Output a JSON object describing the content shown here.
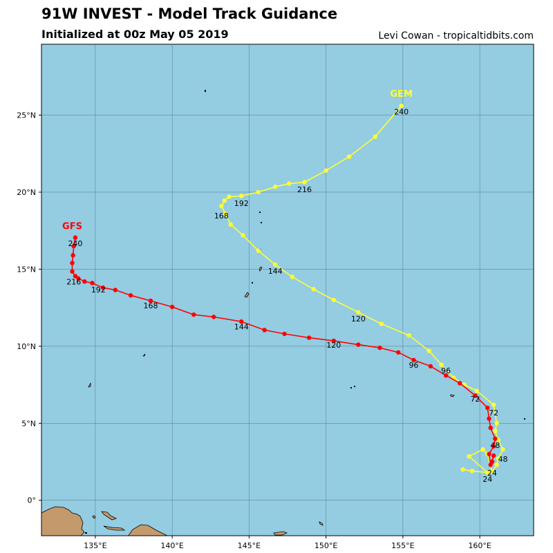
{
  "header": {
    "title": "91W INVEST - Model Track Guidance",
    "subtitle": "Initialized at 00z May 05 2019",
    "credit": "Levi Cowan - tropicaltidbits.com"
  },
  "colors": {
    "ocean": "#94cce2",
    "land": "#c49a6c",
    "gfs": "#ff0000",
    "gem": "#ffff33"
  },
  "axes": {
    "lon_ticks": [
      "135°E",
      "140°E",
      "145°E",
      "150°E",
      "155°E",
      "160°E"
    ],
    "lat_ticks": [
      "0°",
      "5°N",
      "10°N",
      "15°N",
      "20°N",
      "25°N"
    ]
  },
  "chart_data": {
    "type": "line",
    "x_unit": "degrees E longitude",
    "y_unit": "degrees N latitude",
    "xlim": [
      131.5,
      163.5
    ],
    "ylim": [
      -2.3,
      29.6
    ],
    "grid": true,
    "series": [
      {
        "name": "GFS",
        "color": "#ff0000",
        "points": [
          [
            160.8,
            2.5
          ],
          [
            160.9,
            2.9
          ],
          [
            160.7,
            2.3
          ],
          [
            160.6,
            3.0
          ],
          [
            160.9,
            3.5
          ],
          [
            161.0,
            4.0
          ],
          [
            160.7,
            4.7
          ],
          [
            160.6,
            5.3
          ],
          [
            160.5,
            6.0
          ],
          [
            159.7,
            6.8
          ],
          [
            158.7,
            7.6
          ],
          [
            157.8,
            8.1
          ],
          [
            156.8,
            8.7
          ],
          [
            155.7,
            9.1
          ],
          [
            154.7,
            9.6
          ],
          [
            153.5,
            9.9
          ],
          [
            152.1,
            10.1
          ],
          [
            150.5,
            10.35
          ],
          [
            148.9,
            10.55
          ],
          [
            147.3,
            10.8
          ],
          [
            146.0,
            11.05
          ],
          [
            144.5,
            11.6
          ],
          [
            142.7,
            11.9
          ],
          [
            141.4,
            12.05
          ],
          [
            140.0,
            12.55
          ],
          [
            138.6,
            12.95
          ],
          [
            137.3,
            13.3
          ],
          [
            136.3,
            13.65
          ],
          [
            135.5,
            13.8
          ],
          [
            134.8,
            14.1
          ],
          [
            134.3,
            14.2
          ],
          [
            133.9,
            14.4
          ],
          [
            133.7,
            14.55
          ],
          [
            133.5,
            14.85
          ],
          [
            133.5,
            15.4
          ],
          [
            133.55,
            15.9
          ],
          [
            133.6,
            16.5
          ],
          [
            133.7,
            17.05
          ]
        ],
        "labels": [
          {
            "text": "24",
            "x": 160.8,
            "y": 1.6
          },
          {
            "text": "48",
            "x": 161.0,
            "y": 3.4
          },
          {
            "text": "72",
            "x": 160.9,
            "y": 5.5
          },
          {
            "text": "96",
            "x": 155.7,
            "y": 8.6
          },
          {
            "text": "120",
            "x": 150.5,
            "y": 9.9
          },
          {
            "text": "144",
            "x": 144.5,
            "y": 11.1
          },
          {
            "text": "168",
            "x": 138.6,
            "y": 12.45
          },
          {
            "text": "192",
            "x": 135.2,
            "y": 13.5
          },
          {
            "text": "216",
            "x": 133.6,
            "y": 14.0
          },
          {
            "text": "240",
            "x": 133.7,
            "y": 16.5
          }
        ],
        "name_label": {
          "x": 133.5,
          "y": 17.6
        }
      },
      {
        "name": "GEM",
        "color": "#ffff33",
        "points": [
          [
            160.8,
            1.85
          ],
          [
            161.1,
            2.3
          ],
          [
            161.2,
            2.7
          ],
          [
            161.5,
            3.3
          ],
          [
            161.2,
            3.9
          ],
          [
            161.0,
            4.5
          ],
          [
            161.1,
            5.0
          ],
          [
            160.9,
            6.2
          ],
          [
            159.8,
            7.1
          ],
          [
            159.0,
            7.5
          ],
          [
            158.3,
            7.95
          ],
          [
            157.5,
            8.8
          ],
          [
            156.7,
            9.7
          ],
          [
            155.4,
            10.7
          ],
          [
            153.6,
            11.45
          ],
          [
            152.1,
            12.2
          ],
          [
            150.5,
            13.0
          ],
          [
            149.2,
            13.7
          ],
          [
            147.8,
            14.5
          ],
          [
            146.7,
            15.3
          ],
          [
            145.6,
            16.2
          ],
          [
            144.6,
            17.2
          ],
          [
            143.8,
            17.9
          ],
          [
            143.45,
            18.6
          ],
          [
            143.2,
            19.1
          ],
          [
            143.4,
            19.45
          ],
          [
            143.7,
            19.7
          ],
          [
            144.5,
            19.75
          ],
          [
            145.6,
            20.0
          ],
          [
            146.7,
            20.35
          ],
          [
            147.6,
            20.55
          ],
          [
            148.6,
            20.65
          ],
          [
            150.0,
            21.4
          ],
          [
            151.5,
            22.3
          ],
          [
            153.2,
            23.6
          ],
          [
            154.9,
            25.6
          ]
        ],
        "extra_points": [
          [
            158.9,
            2.0
          ],
          [
            159.5,
            1.9
          ],
          [
            160.5,
            1.8
          ],
          [
            159.3,
            2.85
          ],
          [
            160.2,
            3.3
          ],
          [
            160.5,
            3.0
          ]
        ],
        "labels": [
          {
            "text": "24",
            "x": 160.5,
            "y": 1.2
          },
          {
            "text": "48",
            "x": 161.5,
            "y": 2.5
          },
          {
            "text": "72",
            "x": 159.7,
            "y": 6.4
          },
          {
            "text": "96",
            "x": 157.8,
            "y": 8.25
          },
          {
            "text": "120",
            "x": 152.1,
            "y": 11.6
          },
          {
            "text": "144",
            "x": 146.7,
            "y": 14.7
          },
          {
            "text": "168",
            "x": 143.2,
            "y": 18.3
          },
          {
            "text": "192",
            "x": 144.5,
            "y": 19.1
          },
          {
            "text": "216",
            "x": 148.6,
            "y": 20.0
          },
          {
            "text": "240",
            "x": 154.9,
            "y": 25.05
          }
        ],
        "name_label": {
          "x": 154.9,
          "y": 26.2
        }
      }
    ]
  }
}
